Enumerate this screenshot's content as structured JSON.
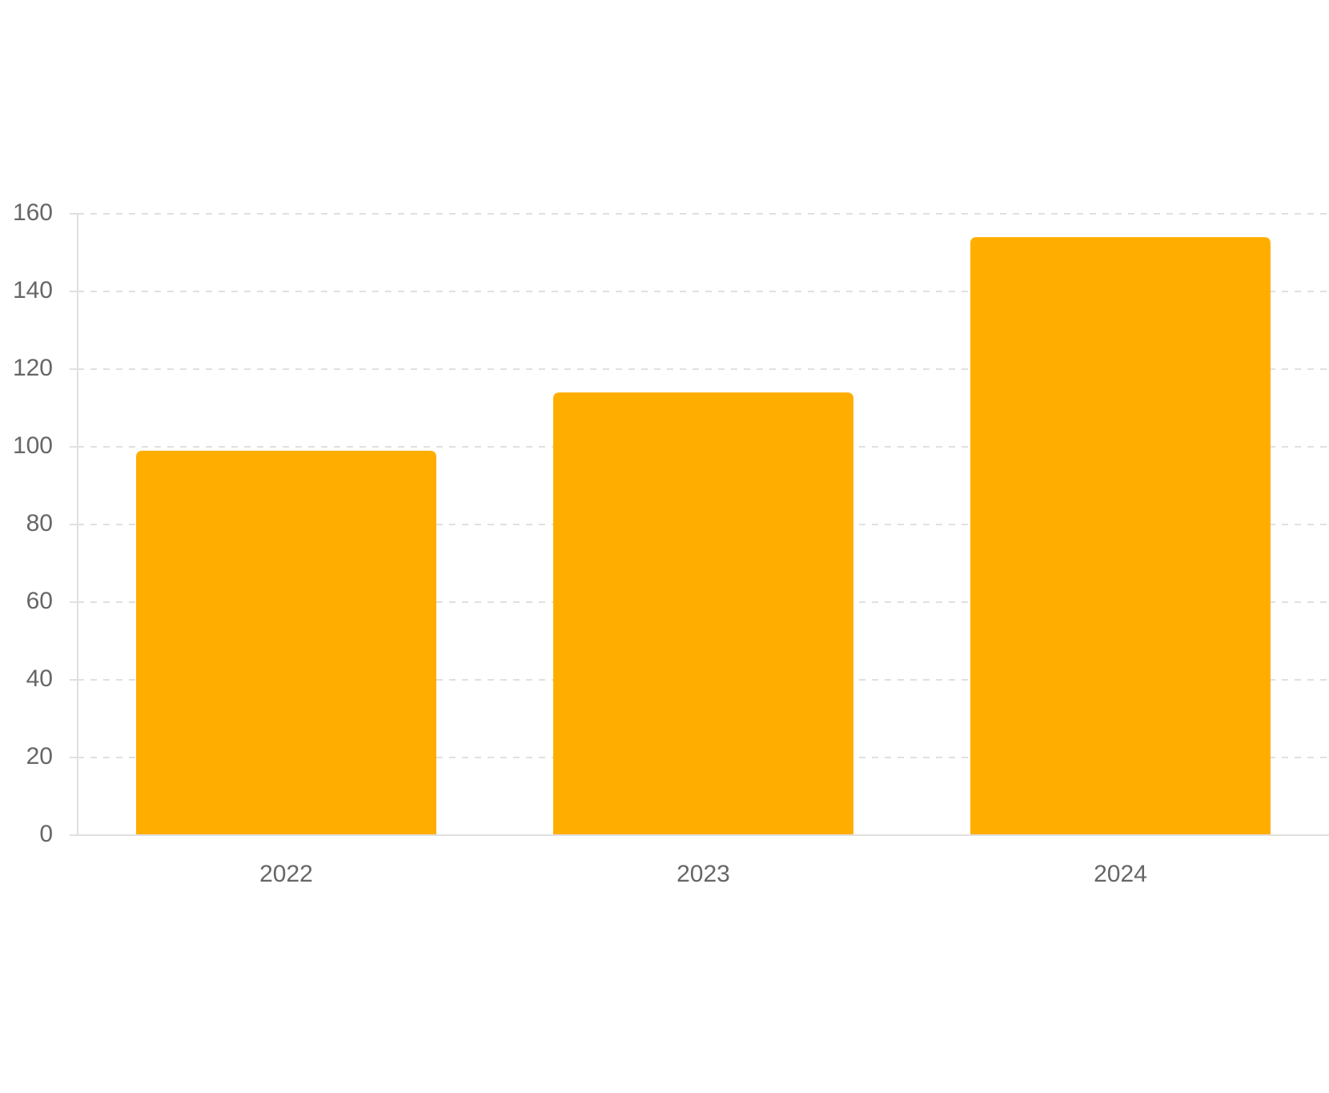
{
  "chart_data": {
    "type": "bar",
    "title": "",
    "xlabel": "",
    "ylabel": "",
    "categories": [
      "2022",
      "2023",
      "2024"
    ],
    "series": [
      {
        "values": [
          99,
          114,
          154
        ],
        "color": "#FFAE00"
      }
    ],
    "ylim": [
      0,
      160
    ],
    "yticks": [
      "0",
      "20",
      "40",
      "60",
      "80",
      "100",
      "120",
      "140",
      "160"
    ],
    "grid": true,
    "grid_style": "dashed",
    "legend": "none",
    "colors": {
      "bar": "#FFAE00",
      "axis": "#e0e0e0",
      "grid": "#e0e0e0",
      "tick_text": "#666666"
    }
  }
}
